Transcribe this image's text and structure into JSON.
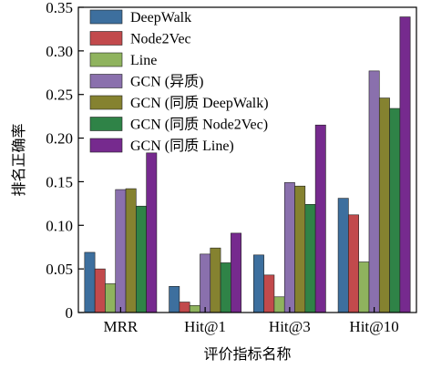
{
  "chart_data": {
    "type": "bar",
    "title": "",
    "xlabel": "评价指标名称",
    "ylabel": "排名正确率",
    "ylim": [
      0,
      0.35
    ],
    "yticks": [
      "0",
      "0.05",
      "0.10",
      "0.15",
      "0.20",
      "0.25",
      "0.30",
      "0.35"
    ],
    "categories": [
      "MRR",
      "Hit@1",
      "Hit@3",
      "Hit@10"
    ],
    "grid": false,
    "legend_position": "top-left",
    "series": [
      {
        "name": "DeepWalk",
        "color": "#3d6f9e",
        "values": [
          0.069,
          0.03,
          0.066,
          0.131
        ]
      },
      {
        "name": "Node2Vec",
        "color": "#c24a4c",
        "values": [
          0.05,
          0.012,
          0.043,
          0.112
        ]
      },
      {
        "name": "Line",
        "color": "#8fb35e",
        "values": [
          0.033,
          0.008,
          0.018,
          0.058
        ]
      },
      {
        "name": "GCN (异质)",
        "color": "#8a70ad",
        "values": [
          0.141,
          0.067,
          0.149,
          0.277
        ]
      },
      {
        "name": "GCN (同质 DeepWalk)",
        "color": "#858230",
        "values": [
          0.142,
          0.074,
          0.145,
          0.246
        ]
      },
      {
        "name": "GCN (同质 Node2Vec)",
        "color": "#2f8347",
        "values": [
          0.122,
          0.057,
          0.124,
          0.234
        ]
      },
      {
        "name": "GCN (同质 Line)",
        "color": "#762a8e",
        "values": [
          0.183,
          0.091,
          0.215,
          0.339
        ]
      }
    ]
  }
}
